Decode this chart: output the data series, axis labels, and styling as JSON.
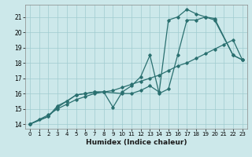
{
  "xlabel": "Humidex (Indice chaleur)",
  "bg_color": "#cce8ea",
  "grid_color": "#a0ccd0",
  "line_color": "#2a7070",
  "xlim": [
    -0.5,
    23.5
  ],
  "ylim": [
    13.7,
    21.8
  ],
  "yticks": [
    14,
    15,
    16,
    17,
    18,
    19,
    20,
    21
  ],
  "xticks": [
    0,
    1,
    2,
    3,
    4,
    5,
    6,
    7,
    8,
    9,
    10,
    11,
    12,
    13,
    14,
    15,
    16,
    17,
    18,
    19,
    20,
    21,
    22,
    23
  ],
  "line1_x": [
    0,
    1,
    2,
    3,
    4,
    5,
    6,
    7,
    8,
    9,
    10,
    11,
    12,
    13,
    14,
    15,
    16,
    17,
    18,
    19,
    20,
    21,
    22,
    23
  ],
  "line1_y": [
    14.0,
    14.3,
    14.6,
    15.0,
    15.3,
    15.6,
    15.8,
    16.0,
    16.1,
    16.2,
    16.4,
    16.6,
    16.8,
    17.0,
    17.2,
    17.5,
    17.8,
    18.0,
    18.3,
    18.6,
    18.9,
    19.2,
    19.5,
    18.2
  ],
  "line2_x": [
    0,
    2,
    3,
    4,
    5,
    6,
    7,
    8,
    9,
    10,
    11,
    12,
    13,
    14,
    15,
    16,
    17,
    18,
    19,
    20,
    22,
    23
  ],
  "line2_y": [
    14.0,
    14.5,
    15.1,
    15.5,
    15.9,
    16.0,
    16.1,
    16.1,
    15.1,
    16.1,
    16.5,
    17.1,
    18.5,
    16.0,
    16.3,
    18.5,
    20.8,
    20.8,
    21.0,
    20.9,
    18.5,
    18.2
  ],
  "line3_x": [
    0,
    2,
    3,
    4,
    5,
    6,
    7,
    8,
    10,
    11,
    12,
    13,
    14,
    15,
    16,
    17,
    18,
    19,
    20,
    22,
    23
  ],
  "line3_y": [
    14.0,
    14.5,
    15.2,
    15.5,
    15.9,
    16.0,
    16.1,
    16.1,
    16.0,
    16.0,
    16.2,
    16.5,
    16.1,
    20.8,
    21.0,
    21.5,
    21.2,
    21.0,
    20.8,
    18.5,
    18.2
  ]
}
